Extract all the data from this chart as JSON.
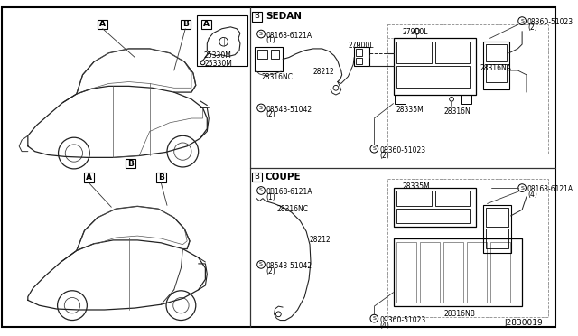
{
  "bg_color": "#ffffff",
  "text_color": "#000000",
  "gray": "#555555",
  "darkgray": "#333333",
  "lightgray": "#aaaaaa",
  "sedan_label": "SEDAN",
  "coupe_label": "COUPE",
  "diagram_number": "J2830019",
  "label_A": "A",
  "label_B": "B"
}
